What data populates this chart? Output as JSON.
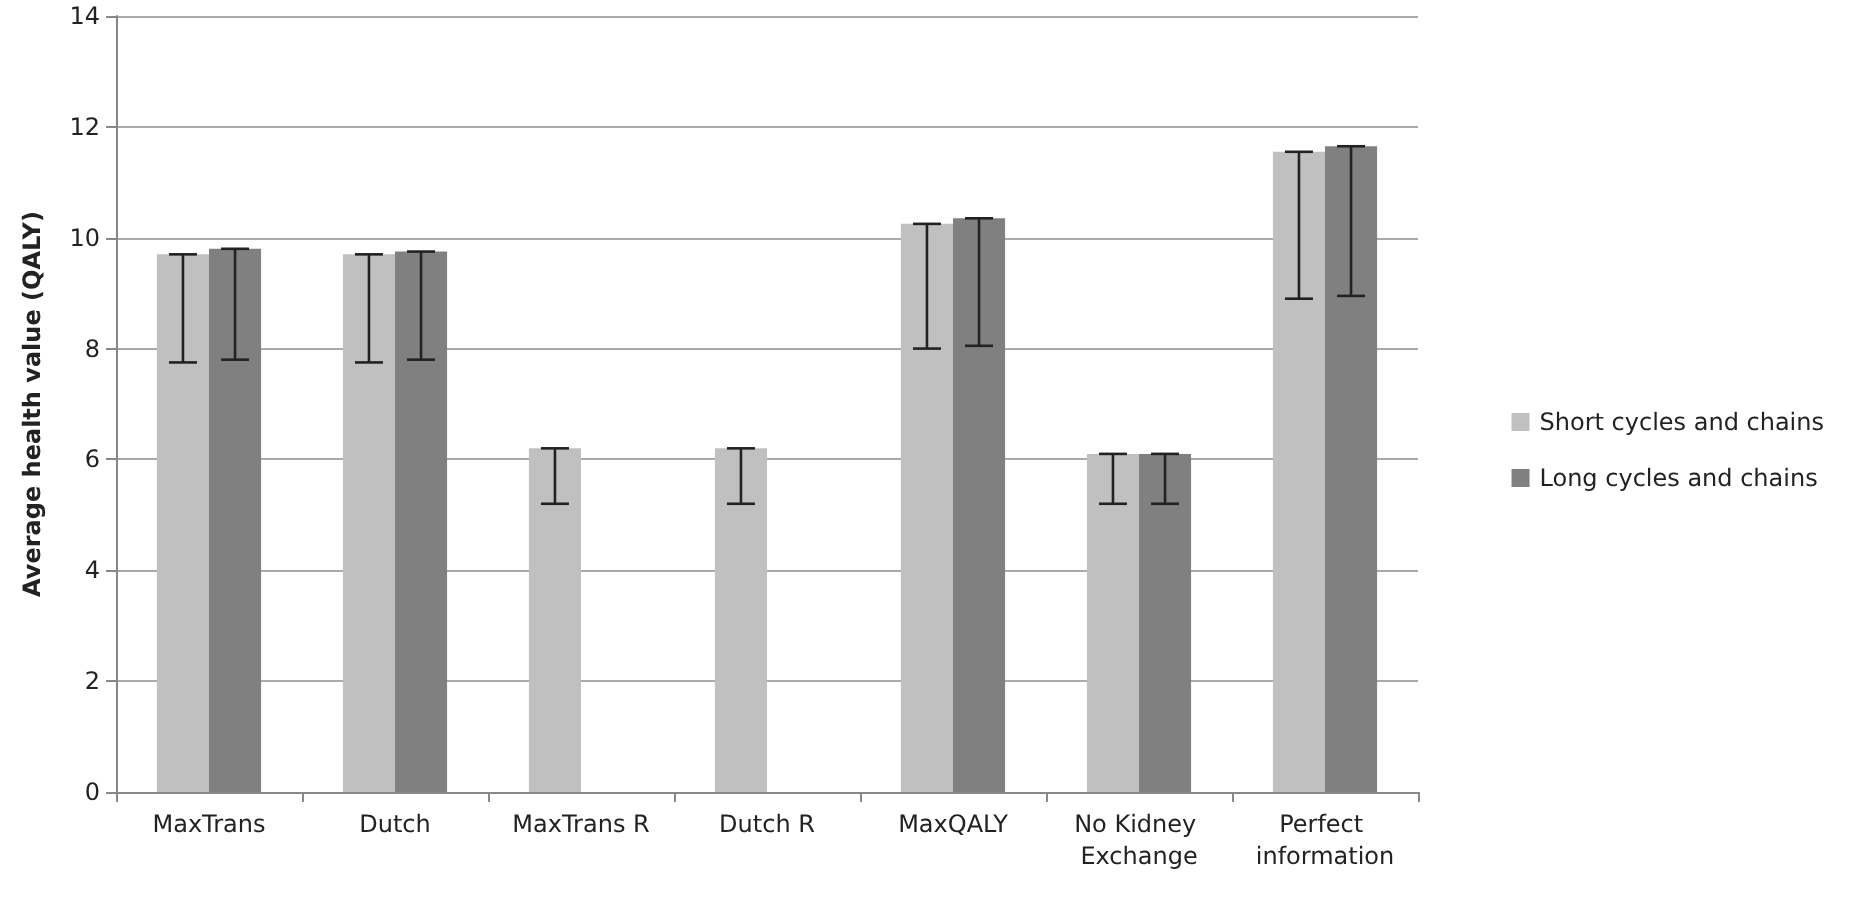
{
  "chart_data": {
    "type": "bar",
    "ylabel": "Average health value (QALY)",
    "categories": [
      "MaxTrans",
      "Dutch",
      "MaxTrans R",
      "Dutch R",
      "MaxQALY",
      "No Kidney Exchange",
      "Perfect information"
    ],
    "series": [
      {
        "name": "Short cycles and chains",
        "color": "#c0c0c0",
        "values": [
          9.7,
          9.7,
          6.2,
          6.2,
          10.25,
          6.1,
          11.55
        ],
        "errors": [
          [
            7.75,
            9.7
          ],
          [
            7.75,
            9.7
          ],
          [
            5.2,
            6.2
          ],
          [
            5.2,
            6.2
          ],
          [
            8.0,
            10.25
          ],
          [
            5.2,
            6.1
          ],
          [
            8.9,
            11.55
          ]
        ]
      },
      {
        "name": "Long cycles and chains",
        "color": "#808080",
        "values": [
          9.8,
          9.75,
          null,
          null,
          10.35,
          6.1,
          11.65
        ],
        "errors": [
          [
            7.8,
            9.8
          ],
          [
            7.8,
            9.75
          ],
          null,
          null,
          [
            8.05,
            10.35
          ],
          [
            5.2,
            6.1
          ],
          [
            8.95,
            11.65
          ]
        ]
      }
    ],
    "ylim": [
      0,
      14
    ],
    "yticks": [
      0,
      2,
      4,
      6,
      8,
      10,
      12,
      14
    ],
    "grid": "y",
    "legend": "right"
  }
}
